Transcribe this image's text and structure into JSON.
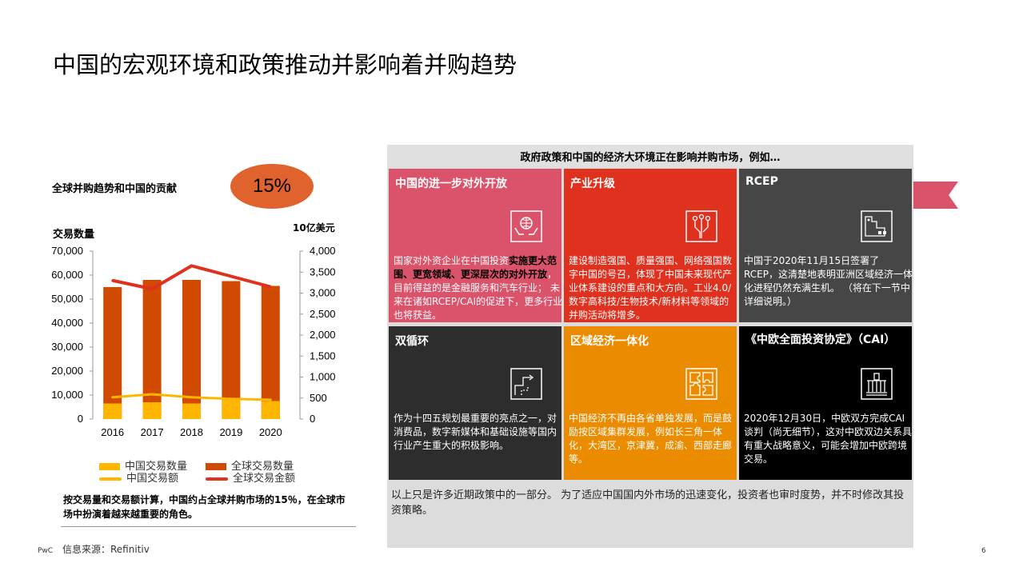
{
  "title": "中国的宏观环境和政策推动并影响着并购趋势",
  "left": {
    "heading": "全球并购趋势和中国的贡献",
    "highlight": "15%",
    "ylabel_left": "交易数量",
    "ylabel_right": "10亿美元",
    "summary": "按交易量和交易额计算，中国约占全球并购市场的15％，在全球市场中扮演着越来越重要的角色。",
    "source": "信息来源：Refinitiv"
  },
  "chart_data": {
    "type": "bar",
    "categories": [
      "2016",
      "2017",
      "2018",
      "2019",
      "2020"
    ],
    "series": [
      {
        "name": "中国交易数量",
        "kind": "bar",
        "axis": "left",
        "color": "#ffb600",
        "values": [
          6500,
          7000,
          6500,
          8500,
          7500
        ]
      },
      {
        "name": "全球交易数量",
        "kind": "bar",
        "axis": "left",
        "color": "#d04a02",
        "values": [
          55000,
          58000,
          58000,
          57500,
          55500
        ]
      },
      {
        "name": "中国交易额",
        "kind": "line",
        "axis": "right",
        "color": "#ffb600",
        "values": [
          520,
          590,
          520,
          480,
          460
        ]
      },
      {
        "name": "全球交易金额",
        "kind": "line",
        "axis": "right",
        "color": "#e0301e",
        "values": [
          3300,
          3100,
          3650,
          3400,
          3150
        ]
      }
    ],
    "ylim_left": [
      0,
      70000
    ],
    "yticks_left": [
      "0",
      "10,000",
      "20,000",
      "30,000",
      "40,000",
      "50,000",
      "60,000",
      "70,000"
    ],
    "ylim_right": [
      0,
      4000
    ],
    "yticks_right": [
      "0",
      "500",
      "1,000",
      "1,500",
      "2,000",
      "2,500",
      "3,000",
      "3,500",
      "4,000"
    ],
    "legend_position": "bottom",
    "grid": false
  },
  "right": {
    "header": "政府政策和中国的经济大环境正在影响并购市场，例如…",
    "tiles": [
      {
        "title": "中国的进一步对外开放",
        "color": "#db536a",
        "icon": "open-hands-globe-icon",
        "text_before": "国家对外资企业在中国投资",
        "text_highlight": "实施更大范围、更宽领域、更深层次的对外开放",
        "text_after": "，目前得益的是金融服务和汽车行业； 未来在诸如RCEP/CAI的促进下，更多行业也将获益。"
      },
      {
        "title": "产业升级",
        "color": "#e0301e",
        "icon": "circuit-chip-icon",
        "text": "建设制造强国、质量强国、网络强国数字中国的号召，体现了中国未来现代产业体系建设的重点和大方向。工业4.0/数字高科技/生物技术/新材料等领域的并购活动将增多。"
      },
      {
        "title": "RCEP",
        "color": "#464646",
        "icon": "region-map-icon",
        "text": "中国于2020年11月15日签署了RCEP，这清楚地表明亚洲区域经济一体化进程仍然充满生机。 （将在下一节中详细说明。）"
      },
      {
        "title": "双循环",
        "color": "#2d2d2d",
        "icon": "circulation-path-icon",
        "text": "作为十四五规划最重要的亮点之一，对消费品，数字新媒体和基础设施等国内行业产生重大的积极影响。"
      },
      {
        "title": "区域经济一体化",
        "color": "#eb8c00",
        "icon": "puzzle-icon",
        "text": "中国经济不再由各省单独发展，而是鼓励按区域集群发展，例如长三角一体化，大湾区，京津冀，成渝、西部走廊等。"
      },
      {
        "title": "《中欧全面投资协定》（CAI）",
        "color": "#000000",
        "icon": "government-building-icon",
        "text": "2020年12月30日，中欧双方完成CAI谈判（尚无细节），这对中欧双边关系具有重大战略意义，可能会增加中欧跨境交易。"
      }
    ],
    "footnote": "以上只是许多近期政策中的一部分。 为了适应中国国内外市场的迅速变化，投资者也审时度势，并不时修改其投资策略。"
  },
  "footer": {
    "brand": "PwC",
    "page": "6"
  }
}
